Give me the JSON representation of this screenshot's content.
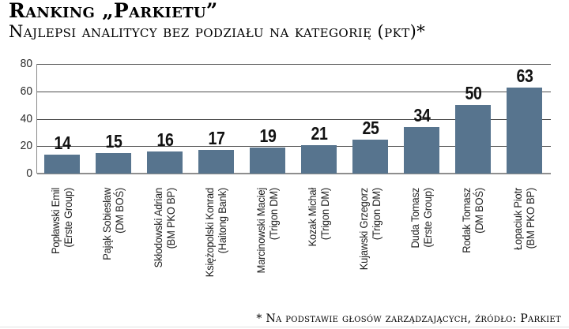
{
  "header": {
    "title": "Ranking „Parkietu”",
    "subtitle": "Najlepsi analitycy bez podziału na kategorię (pkt)*"
  },
  "chart_data": {
    "type": "bar",
    "title": "Ranking „Parkietu”",
    "subtitle": "Najlepsi analitycy bez podziału na kategorię (pkt)*",
    "categories": [
      {
        "name": "Popławski Emil",
        "org": "(Erste Group)"
      },
      {
        "name": "Pająk Sobiesław",
        "org": "(DM BOŚ)"
      },
      {
        "name": "Skłodowski Adrian",
        "org": "(BM PKO BP)"
      },
      {
        "name": "Księżopolski Konrad",
        "org": "(Haitong Bank)"
      },
      {
        "name": "Marcinowski Maciej",
        "org": "(Trigon DM)"
      },
      {
        "name": "Kozak Michał",
        "org": "(Trigon DM)"
      },
      {
        "name": "Kujawski Grzegorz",
        "org": "(Trigon DM)"
      },
      {
        "name": "Duda Tomasz",
        "org": "(Erste Group)"
      },
      {
        "name": "Rodak Tomasz",
        "org": "(DM BOŚ)"
      },
      {
        "name": "Łopaciuk Piotr",
        "org": "(BM PKO BP)"
      }
    ],
    "values": [
      14,
      15,
      16,
      17,
      19,
      21,
      25,
      34,
      50,
      63
    ],
    "ylim": [
      0,
      80
    ],
    "yticks": [
      0,
      20,
      40,
      60,
      80
    ],
    "grid": true,
    "legend": false,
    "bar_color": "#57748e",
    "grid_color": "#4d4d4d"
  },
  "footer": {
    "note": "* Na podstawie głosów zarządzających, źródło: Parkiet"
  }
}
